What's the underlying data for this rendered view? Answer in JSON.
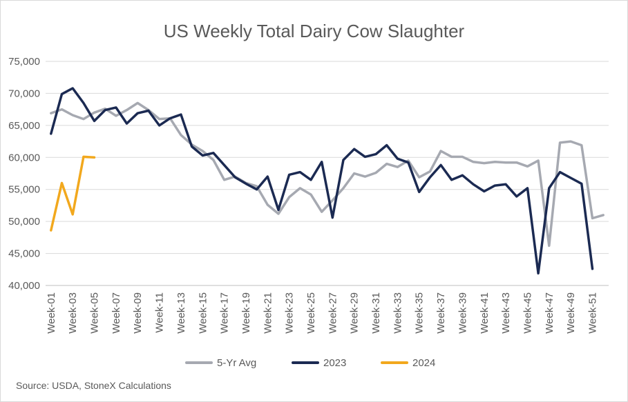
{
  "source": "Source: USDA, StoneX Calculations",
  "chart_data": {
    "type": "line",
    "title": "US Weekly Total Dairy Cow Slaughter",
    "ylim": [
      40000,
      75000
    ],
    "y_ticks": [
      "40,000",
      "45,000",
      "50,000",
      "55,000",
      "60,000",
      "65,000",
      "70,000",
      "75,000"
    ],
    "y_tick_values": [
      40000,
      45000,
      50000,
      55000,
      60000,
      65000,
      70000,
      75000
    ],
    "x_tick_labels": [
      "Week-01",
      "Week-03",
      "Week-05",
      "Week-07",
      "Week-09",
      "Week-11",
      "Week-13",
      "Week-15",
      "Week-17",
      "Week-19",
      "Week-21",
      "Week-23",
      "Week-25",
      "Week-27",
      "Week-29",
      "Week-31",
      "Week-33",
      "Week-35",
      "Week-37",
      "Week-39",
      "Week-41",
      "Week-43",
      "Week-45",
      "Week-47",
      "Week-49",
      "Week-51"
    ],
    "grid": "horizontal",
    "legend_position": "bottom",
    "series": [
      {
        "name": "5-Yr Avg",
        "color": "#a6a9b1",
        "values": [
          66900,
          67500,
          66600,
          66000,
          67000,
          67600,
          66500,
          67400,
          68500,
          67400,
          66000,
          66100,
          63500,
          62000,
          61000,
          59600,
          56500,
          57000,
          56000,
          55500,
          52600,
          51200,
          53800,
          55200,
          54200,
          51500,
          53300,
          55200,
          57500,
          57000,
          57600,
          59000,
          58500,
          59500,
          56900,
          57800,
          61000,
          60100,
          60100,
          59300,
          59100,
          59300,
          59200,
          59200,
          58600,
          59500,
          46200,
          62300,
          62500,
          61900,
          50500,
          51000
        ]
      },
      {
        "name": "2023",
        "color": "#1b2a52",
        "values": [
          63700,
          69900,
          70800,
          68500,
          65700,
          67400,
          67800,
          65300,
          66900,
          67300,
          65000,
          66100,
          66700,
          61700,
          60300,
          60700,
          58800,
          56900,
          55900,
          55000,
          57000,
          51800,
          57300,
          57700,
          56500,
          59300,
          50600,
          59600,
          61300,
          60100,
          60500,
          61900,
          59800,
          59200,
          54600,
          56900,
          58800,
          56500,
          57200,
          55800,
          54700,
          55600,
          55800,
          53900,
          55200,
          41900,
          55200,
          57700,
          56800,
          55900,
          42600
        ]
      },
      {
        "name": "2024",
        "color": "#f2a81d",
        "values": [
          48600,
          56000,
          51100,
          60100,
          60000
        ]
      }
    ]
  }
}
